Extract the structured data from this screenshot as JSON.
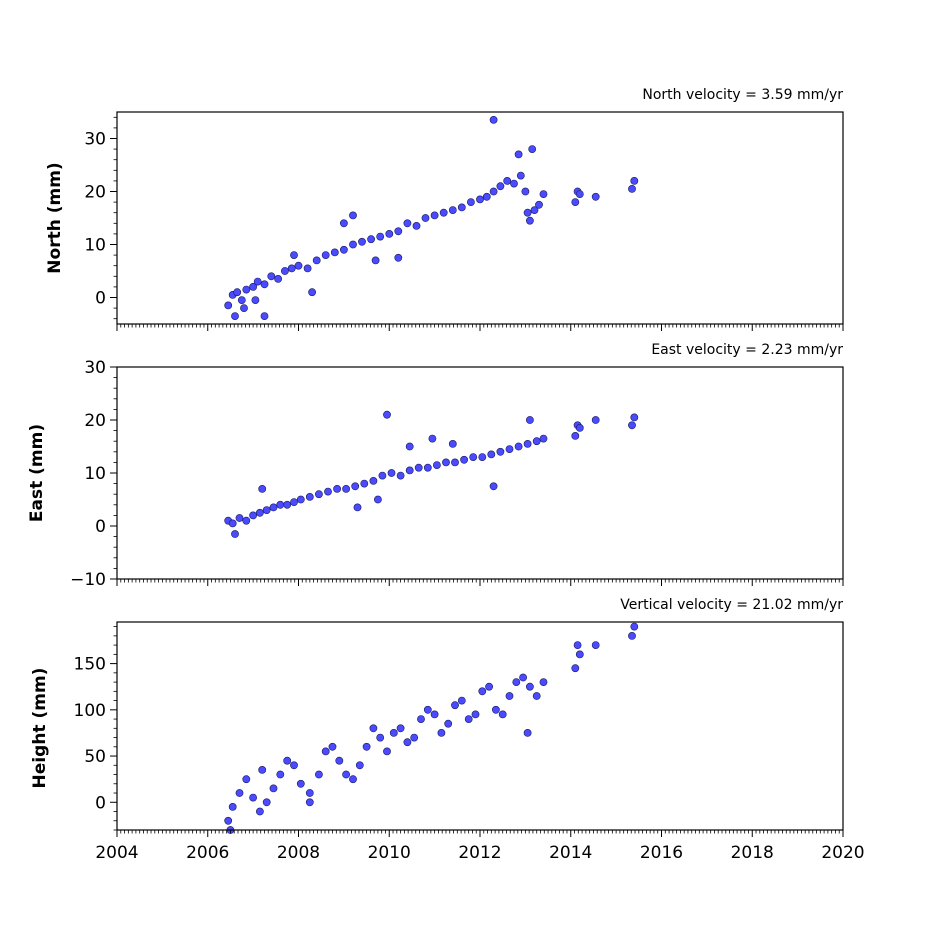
{
  "colors": {
    "marker_fill": "#4a4aff",
    "marker_edge": "#1a1a60",
    "axes": "#000000",
    "background": "#ffffff"
  },
  "chart_data": [
    {
      "type": "scatter",
      "title": "North velocity = 3.59 mm/yr",
      "xlabel": "",
      "ylabel": "North (mm)",
      "xlim": [
        2004,
        2020
      ],
      "ylim": [
        -5,
        35
      ],
      "xticks": [
        2004,
        2006,
        2008,
        2010,
        2012,
        2014,
        2016,
        2018,
        2020
      ],
      "yticks": [
        0,
        10,
        20,
        30
      ],
      "ytick_labels": [
        "0",
        "10",
        "20",
        "30"
      ],
      "grid": false,
      "series": [
        {
          "x": [
            2006.45,
            2006.55,
            2006.65,
            2006.75,
            2006.85,
            2007.0,
            2007.1,
            2007.25,
            2007.4,
            2007.55,
            2007.7,
            2007.85,
            2008.0,
            2008.2,
            2008.4,
            2008.6,
            2008.8,
            2009.0,
            2009.2,
            2009.4,
            2009.6,
            2009.8,
            2010.0,
            2010.2,
            2010.4,
            2010.6,
            2010.8,
            2011.0,
            2011.2,
            2011.4,
            2011.6,
            2011.8,
            2012.0,
            2012.15,
            2012.3,
            2012.45,
            2012.6,
            2012.75,
            2012.9,
            2013.0,
            2013.05,
            2013.1,
            2013.2,
            2013.3,
            2013.4,
            2014.1,
            2014.15,
            2014.2,
            2014.55,
            2015.35,
            2015.4,
            2006.6,
            2006.8,
            2007.05,
            2007.25,
            2007.9,
            2008.3,
            2009.0,
            2009.2,
            2009.7,
            2010.2,
            2012.3,
            2012.85,
            2013.15
          ],
          "y": [
            -1.5,
            0.5,
            1.0,
            -0.5,
            1.5,
            2.0,
            3.0,
            2.5,
            4.0,
            3.5,
            5.0,
            5.5,
            6.0,
            5.5,
            7.0,
            8.0,
            8.5,
            9.0,
            10.0,
            10.5,
            11.0,
            11.5,
            12.0,
            12.5,
            14.0,
            13.5,
            15.0,
            15.5,
            16.0,
            16.5,
            17.0,
            18.0,
            18.5,
            19.0,
            20.0,
            21.0,
            22.0,
            21.5,
            23.0,
            20.0,
            16.0,
            14.5,
            16.5,
            17.5,
            19.5,
            18.0,
            20.0,
            19.5,
            19.0,
            20.5,
            22.0,
            -3.5,
            -2.0,
            -0.5,
            -3.5,
            8.0,
            1.0,
            14.0,
            15.5,
            7.0,
            7.5,
            33.5,
            27.0,
            28.0
          ]
        }
      ]
    },
    {
      "type": "scatter",
      "title": "East velocity = 2.23 mm/yr",
      "xlabel": "",
      "ylabel": "East (mm)",
      "xlim": [
        2004,
        2020
      ],
      "ylim": [
        -10,
        30
      ],
      "xticks": [
        2004,
        2006,
        2008,
        2010,
        2012,
        2014,
        2016,
        2018,
        2020
      ],
      "yticks": [
        -10,
        0,
        10,
        20,
        30
      ],
      "ytick_labels": [
        "−10",
        "0",
        "10",
        "20",
        "30"
      ],
      "grid": false,
      "series": [
        {
          "x": [
            2006.45,
            2006.55,
            2006.7,
            2006.85,
            2007.0,
            2007.15,
            2007.3,
            2007.45,
            2007.6,
            2007.75,
            2007.9,
            2008.05,
            2008.25,
            2008.45,
            2008.65,
            2008.85,
            2009.05,
            2009.25,
            2009.45,
            2009.65,
            2009.85,
            2010.05,
            2010.25,
            2010.45,
            2010.65,
            2010.85,
            2011.05,
            2011.25,
            2011.45,
            2011.65,
            2011.85,
            2012.05,
            2012.25,
            2012.45,
            2012.65,
            2012.85,
            2013.05,
            2013.25,
            2013.4,
            2014.1,
            2014.15,
            2014.2,
            2014.55,
            2015.35,
            2015.4,
            2006.6,
            2007.2,
            2009.3,
            2009.75,
            2009.95,
            2010.45,
            2010.95,
            2011.4,
            2012.3,
            2013.1
          ],
          "y": [
            1.0,
            0.5,
            1.5,
            1.0,
            2.0,
            2.5,
            3.0,
            3.5,
            4.0,
            4.0,
            4.5,
            5.0,
            5.5,
            6.0,
            6.5,
            7.0,
            7.0,
            7.5,
            8.0,
            8.5,
            9.5,
            10.0,
            9.5,
            10.5,
            11.0,
            11.0,
            11.5,
            12.0,
            12.0,
            12.5,
            13.0,
            13.0,
            13.5,
            14.0,
            14.5,
            15.0,
            15.5,
            16.0,
            16.5,
            17.0,
            19.0,
            18.5,
            20.0,
            19.0,
            20.5,
            -1.5,
            7.0,
            3.5,
            5.0,
            21.0,
            15.0,
            16.5,
            15.5,
            7.5,
            20.0
          ]
        }
      ]
    },
    {
      "type": "scatter",
      "title": "Vertical velocity = 21.02 mm/yr",
      "xlabel": "",
      "ylabel": "Height (mm)",
      "xlim": [
        2004,
        2020
      ],
      "ylim": [
        -30,
        195
      ],
      "xticks": [
        2004,
        2006,
        2008,
        2010,
        2012,
        2014,
        2016,
        2018,
        2020
      ],
      "xtick_labels": [
        "2004",
        "2006",
        "2008",
        "2010",
        "2012",
        "2014",
        "2016",
        "2018",
        "2020"
      ],
      "yticks": [
        0,
        50,
        100,
        150
      ],
      "ytick_labels": [
        "0",
        "50",
        "100",
        "150"
      ],
      "grid": false,
      "series": [
        {
          "x": [
            2006.45,
            2006.55,
            2006.7,
            2006.85,
            2007.0,
            2007.15,
            2007.3,
            2007.45,
            2007.6,
            2007.75,
            2007.9,
            2008.05,
            2008.25,
            2008.45,
            2008.6,
            2008.75,
            2008.9,
            2009.05,
            2009.2,
            2009.35,
            2009.5,
            2009.65,
            2009.8,
            2009.95,
            2010.1,
            2010.25,
            2010.4,
            2010.55,
            2010.7,
            2010.85,
            2011.0,
            2011.15,
            2011.3,
            2011.45,
            2011.6,
            2011.75,
            2011.9,
            2012.05,
            2012.2,
            2012.35,
            2012.5,
            2012.65,
            2012.8,
            2012.95,
            2013.1,
            2013.25,
            2013.4,
            2014.1,
            2014.15,
            2014.2,
            2014.55,
            2015.35,
            2015.4,
            2006.5,
            2007.2,
            2008.25,
            2013.05
          ],
          "y": [
            -20,
            -5,
            10,
            25,
            5,
            -10,
            0,
            15,
            30,
            45,
            40,
            20,
            10,
            30,
            55,
            60,
            45,
            30,
            25,
            40,
            60,
            80,
            70,
            55,
            75,
            80,
            65,
            70,
            90,
            100,
            95,
            75,
            85,
            105,
            110,
            90,
            95,
            120,
            125,
            100,
            95,
            115,
            130,
            135,
            125,
            115,
            130,
            145,
            170,
            160,
            170,
            180,
            190,
            -30,
            35,
            0,
            75
          ]
        }
      ]
    }
  ]
}
